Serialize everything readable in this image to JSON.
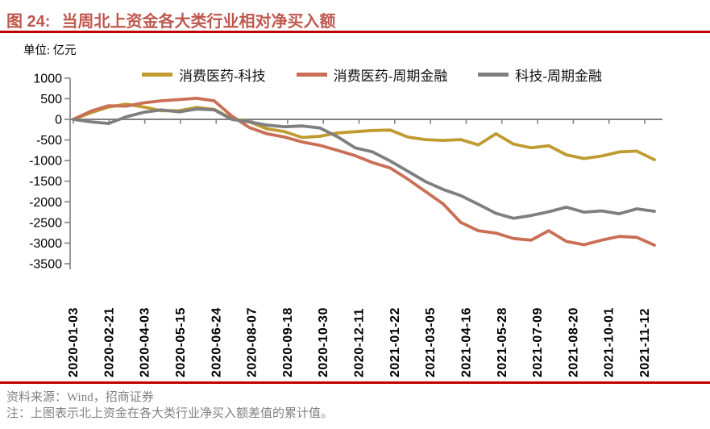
{
  "figure": {
    "label": "图 24:",
    "title": "当周北上资金各大类行业相对净买入额",
    "unit": "单位: 亿元",
    "source": "资料来源：Wind，招商证券",
    "note": "注：上图表示北上资金在各大类行业净买入额差值的累计值。"
  },
  "colors": {
    "title": "#BE584E",
    "rule_red": "#C00000",
    "axis_gray": "#808080",
    "text_gray": "#808080",
    "tick_text": "#000000"
  },
  "chart_data": {
    "type": "line",
    "title": "当周北上资金各大类行业相对净买入额",
    "ylabel": "亿元",
    "ylim": [
      -3500,
      1000
    ],
    "y_ticks": [
      1000,
      500,
      0,
      -500,
      -1000,
      -1500,
      -2000,
      -2500,
      -3000,
      -3500
    ],
    "grid": false,
    "legend_position": "top",
    "categories": [
      "2020-01-03",
      "2020-02-21",
      "2020-04-03",
      "2020-05-15",
      "2020-06-24",
      "2020-08-07",
      "2020-09-18",
      "2020-10-30",
      "2020-12-11",
      "2021-01-22",
      "2021-03-05",
      "2021-04-16",
      "2021-05-28",
      "2021-07-09",
      "2021-08-20",
      "2021-10-01",
      "2021-11-12"
    ],
    "series": [
      {
        "name": "消费医药-科技",
        "color": "#BF9B30",
        "values_at_ticks": [
          0,
          300,
          300,
          210,
          240,
          -60,
          -300,
          -410,
          -300,
          -260,
          -490,
          -490,
          -350,
          -690,
          -860,
          -860,
          -830
        ],
        "dense": [
          0,
          160,
          300,
          370,
          300,
          210,
          210,
          290,
          240,
          20,
          -60,
          -230,
          -300,
          -440,
          -410,
          -330,
          -300,
          -270,
          -260,
          -430,
          -490,
          -510,
          -490,
          -620,
          -350,
          -600,
          -690,
          -640,
          -860,
          -950,
          -890,
          -790,
          -770,
          -980
        ]
      },
      {
        "name": "消费医药-周期金融",
        "color": "#C96F55",
        "values_at_ticks": [
          0,
          330,
          400,
          480,
          450,
          -200,
          -430,
          -630,
          -880,
          -1180,
          -1750,
          -2500,
          -2760,
          -2930,
          -3000,
          -2930,
          -2900
        ],
        "dense": [
          0,
          200,
          330,
          320,
          400,
          450,
          480,
          510,
          450,
          80,
          -200,
          -350,
          -430,
          -550,
          -630,
          -750,
          -880,
          -1050,
          -1180,
          -1450,
          -1750,
          -2050,
          -2500,
          -2700,
          -2760,
          -2890,
          -2930,
          -2700,
          -2960,
          -3040,
          -2930,
          -2840,
          -2860,
          -3050
        ]
      },
      {
        "name": "科技-周期金融",
        "color": "#7F7F7F",
        "values_at_ticks": [
          0,
          -100,
          170,
          180,
          230,
          -60,
          -180,
          -210,
          -690,
          -1010,
          -1510,
          -1850,
          -2300,
          -2280,
          -2130,
          -2220,
          -2190
        ],
        "dense": [
          0,
          -60,
          -100,
          60,
          170,
          230,
          180,
          250,
          230,
          0,
          -60,
          -140,
          -180,
          -160,
          -210,
          -420,
          -690,
          -790,
          -1010,
          -1260,
          -1510,
          -1700,
          -1850,
          -2060,
          -2280,
          -2400,
          -2330,
          -2240,
          -2130,
          -2250,
          -2220,
          -2290,
          -2170,
          -2230
        ]
      }
    ]
  }
}
